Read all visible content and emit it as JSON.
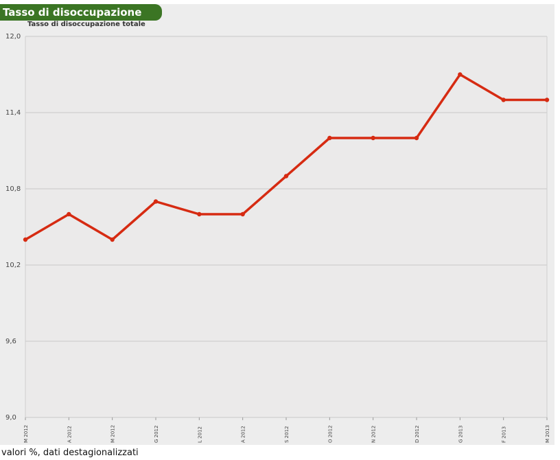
{
  "header": {
    "title": "Tasso di disoccupazione"
  },
  "footnote": "valori %, dati destagionalizzati",
  "colors": {
    "header_bg": "#3b7524",
    "line": "#d62b12",
    "plot_bg": "#ededed",
    "grid": "#c8c8c8"
  },
  "chart_data": {
    "type": "line",
    "title": "Tasso di disoccupazione totale",
    "xlabel": "",
    "ylabel": "",
    "ylim": [
      9.0,
      12.0
    ],
    "yticks": [
      "12,0",
      "11,4",
      "10,8",
      "10,2",
      "9,6",
      "9,0"
    ],
    "ytick_values": [
      12.0,
      11.4,
      10.8,
      10.2,
      9.6,
      9.0
    ],
    "grid": true,
    "categories": [
      "M 2012",
      "A 2012",
      "M 2012",
      "G 2012",
      "L 2012",
      "A 2012",
      "S 2012",
      "O 2012",
      "N 2012",
      "D 2012",
      "G 2013",
      "F 2013",
      "M 2013"
    ],
    "series": [
      {
        "values": [
          10.4,
          10.6,
          10.4,
          10.7,
          10.6,
          10.6,
          10.9,
          11.2,
          11.2,
          11.2,
          11.7,
          11.5,
          11.5
        ]
      }
    ]
  }
}
